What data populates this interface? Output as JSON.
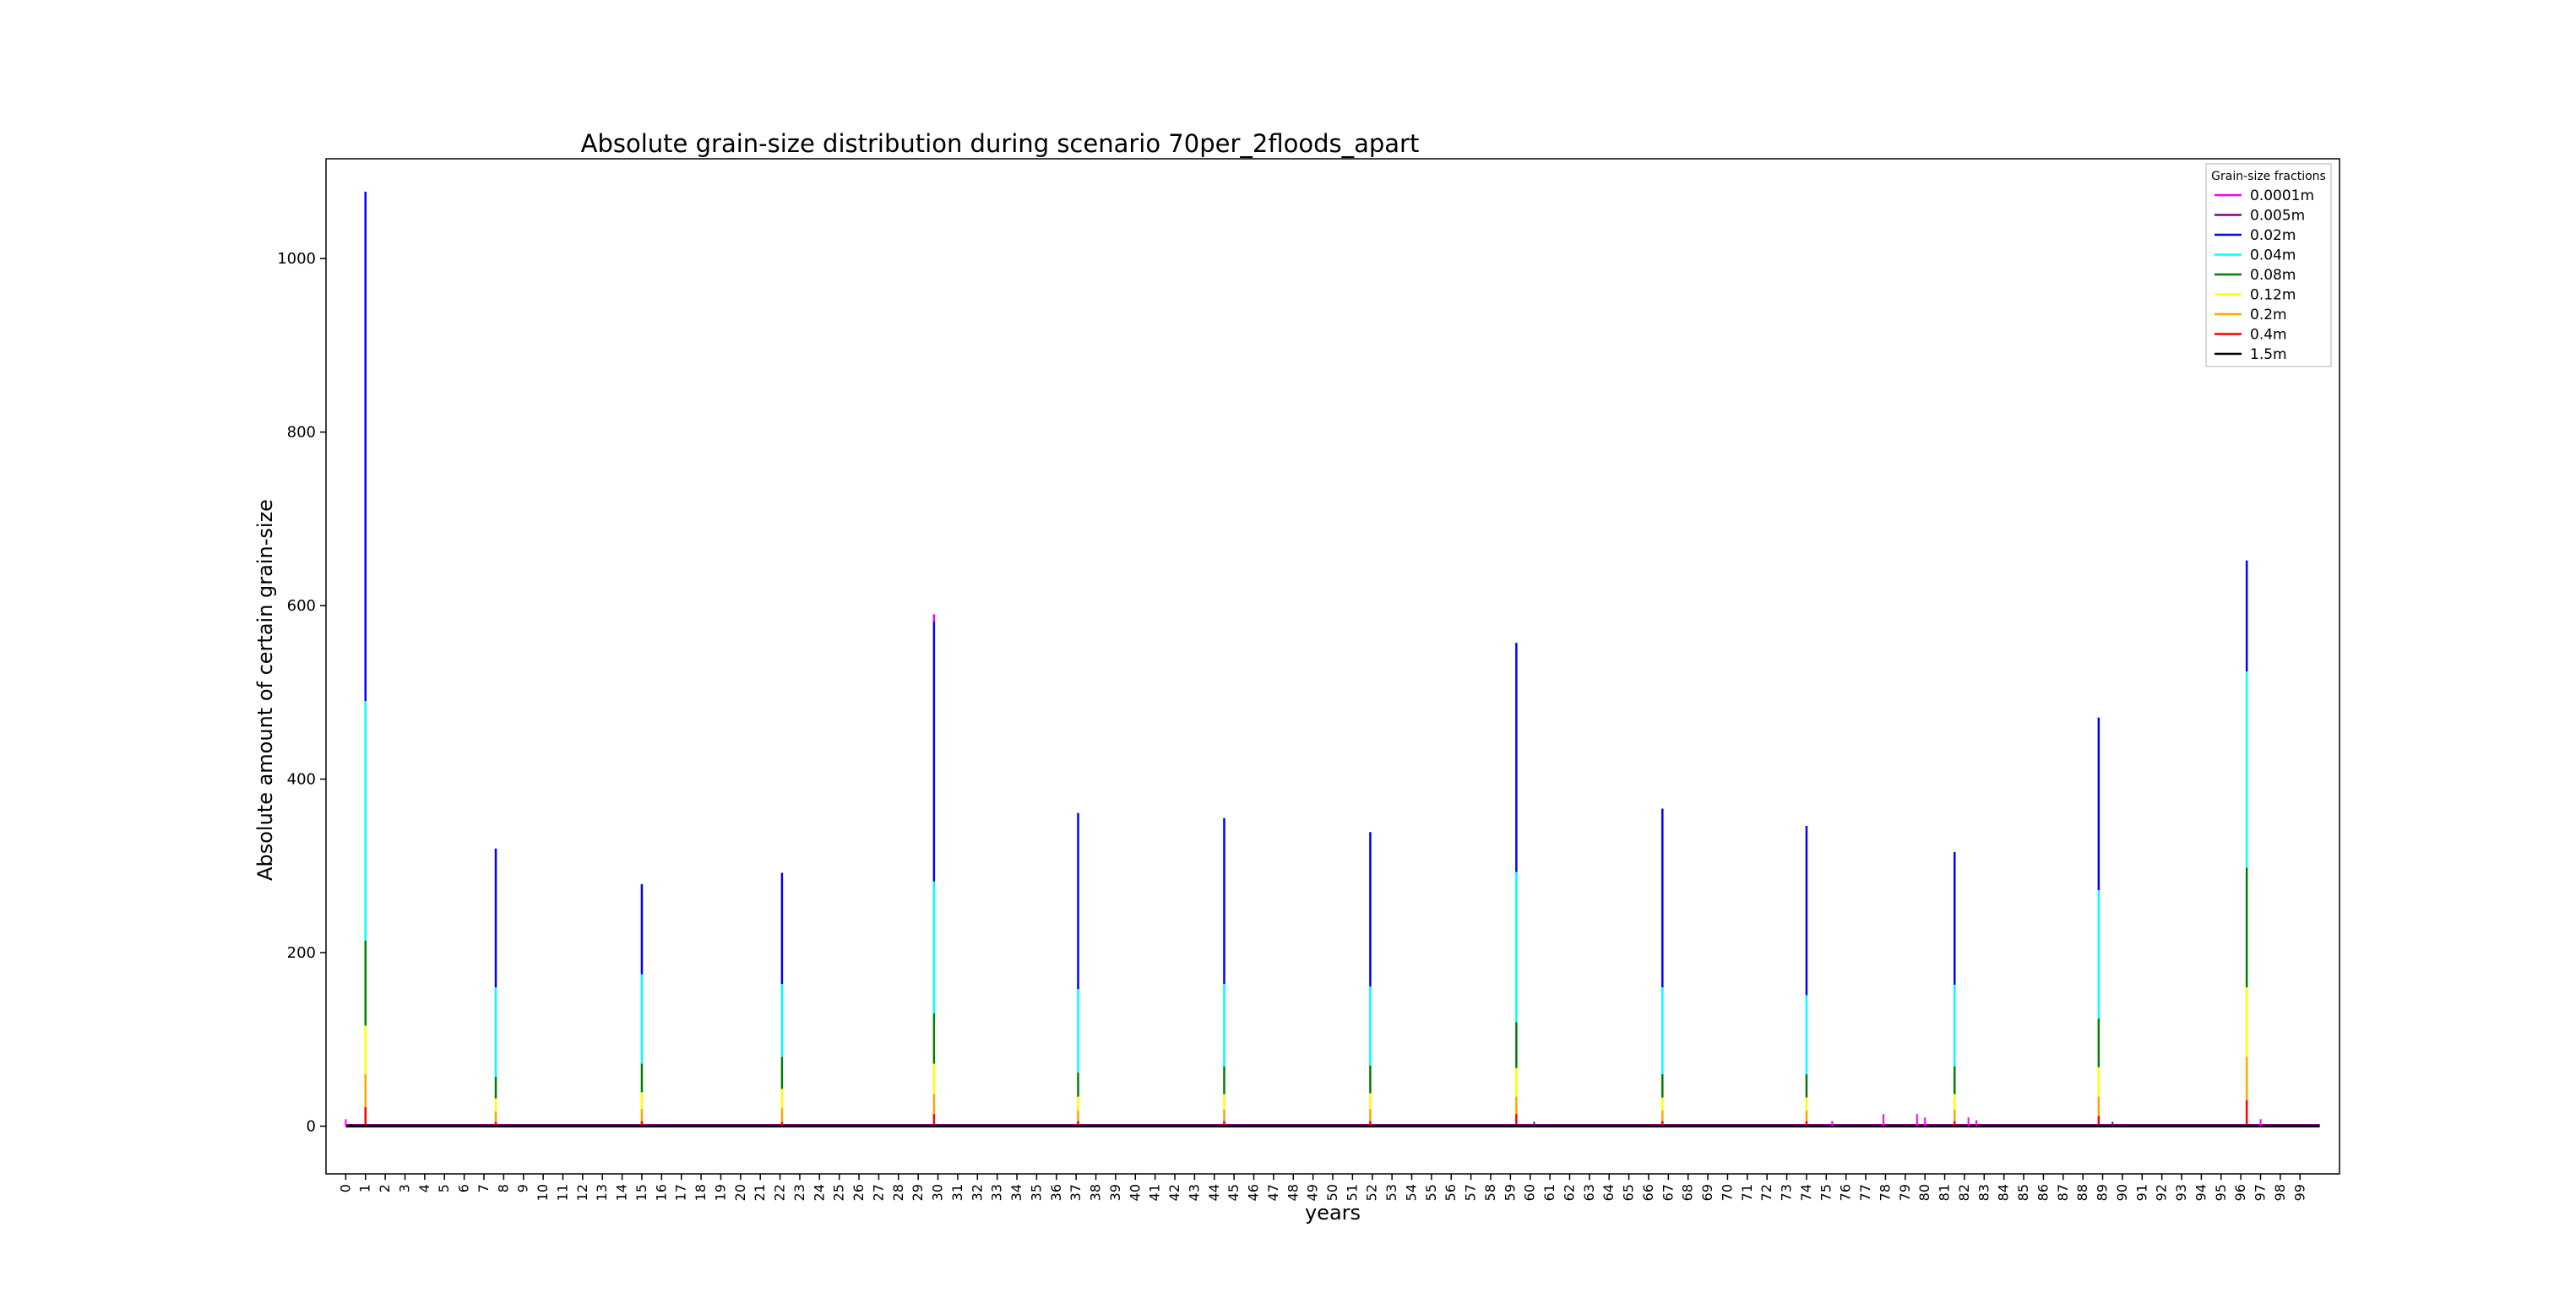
{
  "chart_data": {
    "type": "line",
    "title": "Absolute grain-size distribution during scenario 70per_2floods_apart",
    "xlabel": "years",
    "ylabel": "Absolute amount of certain grain-size",
    "xlim": [
      -1,
      101
    ],
    "ylim": [
      -55,
      1115
    ],
    "yticks": [
      0,
      200,
      400,
      600,
      800,
      1000
    ],
    "xticks": [
      0,
      1,
      2,
      3,
      4,
      5,
      6,
      7,
      8,
      9,
      10,
      11,
      12,
      13,
      14,
      15,
      16,
      17,
      18,
      19,
      20,
      21,
      22,
      23,
      24,
      25,
      26,
      27,
      28,
      29,
      30,
      31,
      32,
      33,
      34,
      35,
      36,
      37,
      38,
      39,
      40,
      41,
      42,
      43,
      44,
      45,
      46,
      47,
      48,
      49,
      50,
      51,
      52,
      53,
      54,
      55,
      56,
      57,
      58,
      59,
      60,
      61,
      62,
      63,
      64,
      65,
      66,
      67,
      68,
      69,
      70,
      71,
      72,
      73,
      74,
      75,
      76,
      77,
      78,
      79,
      80,
      81,
      82,
      83,
      84,
      85,
      86,
      87,
      88,
      89,
      90,
      91,
      92,
      93,
      94,
      95,
      96,
      97,
      98,
      99
    ],
    "grid": false,
    "legend": {
      "title": "Grain-size fractions",
      "placement": "top-right",
      "entries": [
        {
          "label": "0.0001m",
          "color": "#ff00ff"
        },
        {
          "label": "0.005m",
          "color": "#800080"
        },
        {
          "label": "0.02m",
          "color": "#0000ff"
        },
        {
          "label": "0.04m",
          "color": "#00ffff"
        },
        {
          "label": "0.08m",
          "color": "#008000"
        },
        {
          "label": "0.12m",
          "color": "#ffff00"
        },
        {
          "label": "0.2m",
          "color": "#ffa500"
        },
        {
          "label": "0.4m",
          "color": "#ff0000"
        },
        {
          "label": "1.5m",
          "color": "#000000"
        }
      ]
    },
    "flood_years": [
      1,
      7.6,
      15,
      22.1,
      29.8,
      37.1,
      44.5,
      51.9,
      59.3,
      66.7,
      74,
      81.5,
      88.8,
      96.3
    ],
    "stack_order": [
      "1.5m",
      "0.4m",
      "0.2m",
      "0.12m",
      "0.08m",
      "0.04m",
      "0.02m",
      "0.005m",
      "0.0001m"
    ],
    "series": [
      {
        "name": "0.0001m",
        "color": "#ff00ff",
        "values": [
          0,
          0,
          0,
          0,
          8,
          0,
          0,
          0,
          0,
          0,
          0,
          0,
          0,
          0
        ]
      },
      {
        "name": "0.005m",
        "color": "#800080",
        "values": [
          0,
          0,
          0,
          0,
          0,
          0,
          0,
          0,
          0,
          0,
          0,
          0,
          0,
          0
        ]
      },
      {
        "name": "0.02m",
        "color": "#0000ff",
        "values": [
          587,
          160,
          104,
          128,
          300,
          203,
          191,
          178,
          264,
          206,
          195,
          153,
          199,
          128
        ]
      },
      {
        "name": "0.04m",
        "color": "#00ffff",
        "values": [
          276,
          103,
          103,
          84,
          152,
          96,
          95,
          91,
          173,
          100,
          91,
          94,
          148,
          226
        ]
      },
      {
        "name": "0.08m",
        "color": "#008000",
        "values": [
          98,
          25,
          33,
          37,
          58,
          28,
          32,
          32,
          53,
          27,
          27,
          32,
          56,
          138
        ]
      },
      {
        "name": "0.12m",
        "color": "#ffff00",
        "values": [
          56,
          15,
          19,
          22,
          35,
          16,
          18,
          18,
          33,
          15,
          15,
          18,
          34,
          80
        ]
      },
      {
        "name": "0.2m",
        "color": "#ffa500",
        "values": [
          38,
          12,
          14,
          16,
          23,
          12,
          13,
          14,
          20,
          12,
          12,
          13,
          22,
          50
        ]
      },
      {
        "name": "0.4m",
        "color": "#ff0000",
        "values": [
          20,
          4,
          5,
          4,
          12,
          5,
          5,
          5,
          12,
          5,
          5,
          5,
          10,
          28
        ]
      },
      {
        "name": "1.5m",
        "color": "#000000",
        "values": [
          2,
          1,
          1,
          1,
          2,
          1,
          1,
          1,
          2,
          1,
          1,
          1,
          2,
          2
        ]
      }
    ],
    "background_noise": [
      {
        "year": 0,
        "value": 8,
        "color": "#ff00ff"
      },
      {
        "year": 75.3,
        "value": 6,
        "color": "#ff00ff"
      },
      {
        "year": 77.9,
        "value": 14,
        "color": "#ff00ff"
      },
      {
        "year": 79.6,
        "value": 14,
        "color": "#ff00ff"
      },
      {
        "year": 80,
        "value": 10,
        "color": "#ff00ff"
      },
      {
        "year": 82.2,
        "value": 10,
        "color": "#ff00ff"
      },
      {
        "year": 82.6,
        "value": 7,
        "color": "#ff00ff"
      },
      {
        "year": 97,
        "value": 8,
        "color": "#ff00ff"
      },
      {
        "year": 60.2,
        "value": 5,
        "color": "#800080"
      },
      {
        "year": 89.5,
        "value": 5,
        "color": "#800080"
      }
    ]
  }
}
